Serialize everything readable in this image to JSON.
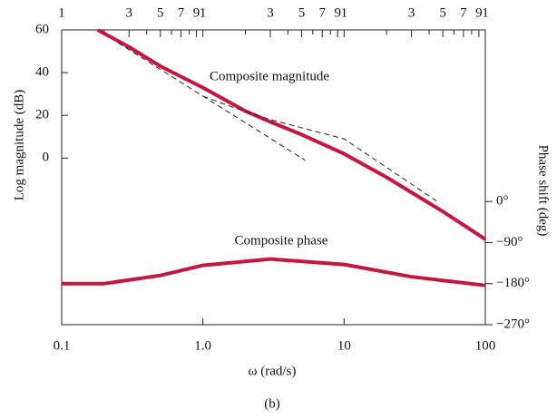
{
  "chart_data": {
    "type": "line",
    "xscale": "log",
    "xlabel": "ω (rad/s)",
    "ylabel": "Log magnitude (dB)",
    "y2label": "Phase shift (deg)",
    "caption": "(b)",
    "xlim": [
      0.1,
      100
    ],
    "xticks": [
      0.1,
      {
        "value": 1,
        "label": "1.0"
      },
      10,
      100
    ],
    "top_ticks": [
      {
        "value": 0.1,
        "label": "1"
      },
      {
        "value": 0.3,
        "label": "3"
      },
      {
        "value": 0.5,
        "label": "5"
      },
      {
        "value": 0.7,
        "label": "7"
      },
      {
        "value": 0.9,
        "label": "9"
      },
      {
        "value": 1,
        "label": "1"
      },
      {
        "value": 3,
        "label": "3"
      },
      {
        "value": 5,
        "label": "5"
      },
      {
        "value": 7,
        "label": "7"
      },
      {
        "value": 9,
        "label": "9"
      },
      {
        "value": 10,
        "label": "1"
      },
      {
        "value": 30,
        "label": "3"
      },
      {
        "value": 50,
        "label": "5"
      },
      {
        "value": 70,
        "label": "7"
      },
      {
        "value": 90,
        "label": "9"
      },
      {
        "value": 100,
        "label": "1"
      }
    ],
    "top_minor_ticks": [
      0.2,
      0.4,
      0.6,
      0.8,
      2,
      4,
      6,
      8,
      20,
      40,
      60,
      80
    ],
    "ylim": [
      -78,
      60
    ],
    "yticks": [
      0,
      20,
      40,
      60
    ],
    "y2lim": [
      -270,
      376
    ],
    "y2ticks": [
      {
        "value": 0,
        "label": "0°"
      },
      {
        "value": -90,
        "label": "−90°"
      },
      {
        "value": -180,
        "label": "−180°"
      },
      {
        "value": -270,
        "label": "−270°"
      }
    ],
    "series": [
      {
        "name": "Composite magnitude",
        "color": "#c3173f",
        "style": "solid",
        "x": [
          0.18,
          0.3,
          0.5,
          1,
          2,
          3,
          5,
          10,
          20,
          50,
          100
        ],
        "values": [
          60,
          52,
          43,
          33,
          22,
          17,
          11,
          2,
          -9,
          -25,
          -38
        ]
      },
      {
        "color": "#222222",
        "style": "dashed",
        "x": [
          0.25,
          5.3
        ],
        "values": [
          54,
          -1
        ]
      },
      {
        "color": "#222222",
        "style": "dashed",
        "x": [
          1,
          1.6,
          3,
          10,
          45
        ],
        "values": [
          29,
          24,
          18,
          9,
          -20
        ]
      },
      {
        "name": "Composite phase",
        "color": "#c3173f",
        "style": "solid",
        "axis": "y2",
        "x": [
          0.1,
          0.2,
          0.5,
          1,
          3,
          10,
          30,
          100
        ],
        "values": [
          -180,
          -180,
          -162,
          -140,
          -126,
          -138,
          -165,
          -184
        ]
      }
    ]
  }
}
